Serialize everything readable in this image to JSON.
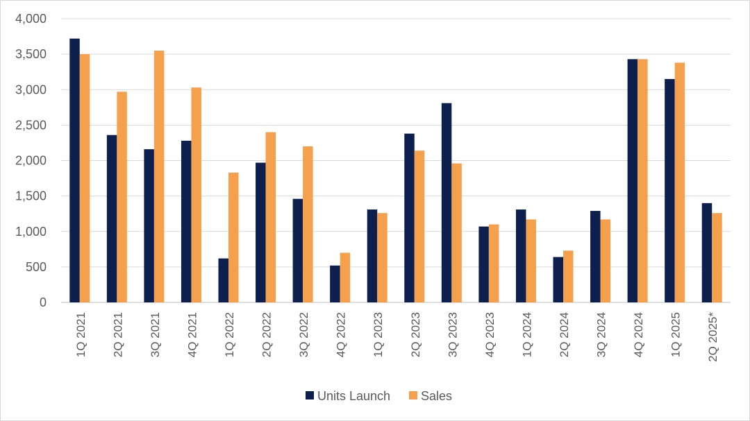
{
  "chart_data": {
    "type": "bar",
    "categories": [
      "1Q 2021",
      "2Q 2021",
      "3Q 2021",
      "4Q 2021",
      "1Q 2022",
      "2Q 2022",
      "3Q 2022",
      "4Q 2022",
      "1Q 2023",
      "2Q 2023",
      "3Q 2023",
      "4Q 2023",
      "1Q 2024",
      "2Q 2024",
      "3Q 2024",
      "4Q 2024",
      "1Q 2025",
      "2Q 2025*"
    ],
    "series": [
      {
        "name": "Units Launch",
        "color": "#0d1f4d",
        "values": [
          3720,
          2360,
          2160,
          2280,
          620,
          1970,
          1460,
          520,
          1310,
          2380,
          2810,
          1070,
          1310,
          640,
          1290,
          3430,
          3150,
          1400
        ]
      },
      {
        "name": "Sales",
        "color": "#f5a04d",
        "values": [
          3500,
          2970,
          3550,
          3030,
          1830,
          2400,
          2200,
          700,
          1260,
          2140,
          1960,
          1100,
          1170,
          730,
          1170,
          3430,
          3380,
          1260
        ]
      }
    ],
    "y_ticks": [
      "0",
      "500",
      "1,000",
      "1,500",
      "2,000",
      "2,500",
      "3,000",
      "3,500",
      "4,000"
    ],
    "ylim": [
      0,
      4000
    ],
    "grid": true,
    "legend_position": "bottom"
  }
}
